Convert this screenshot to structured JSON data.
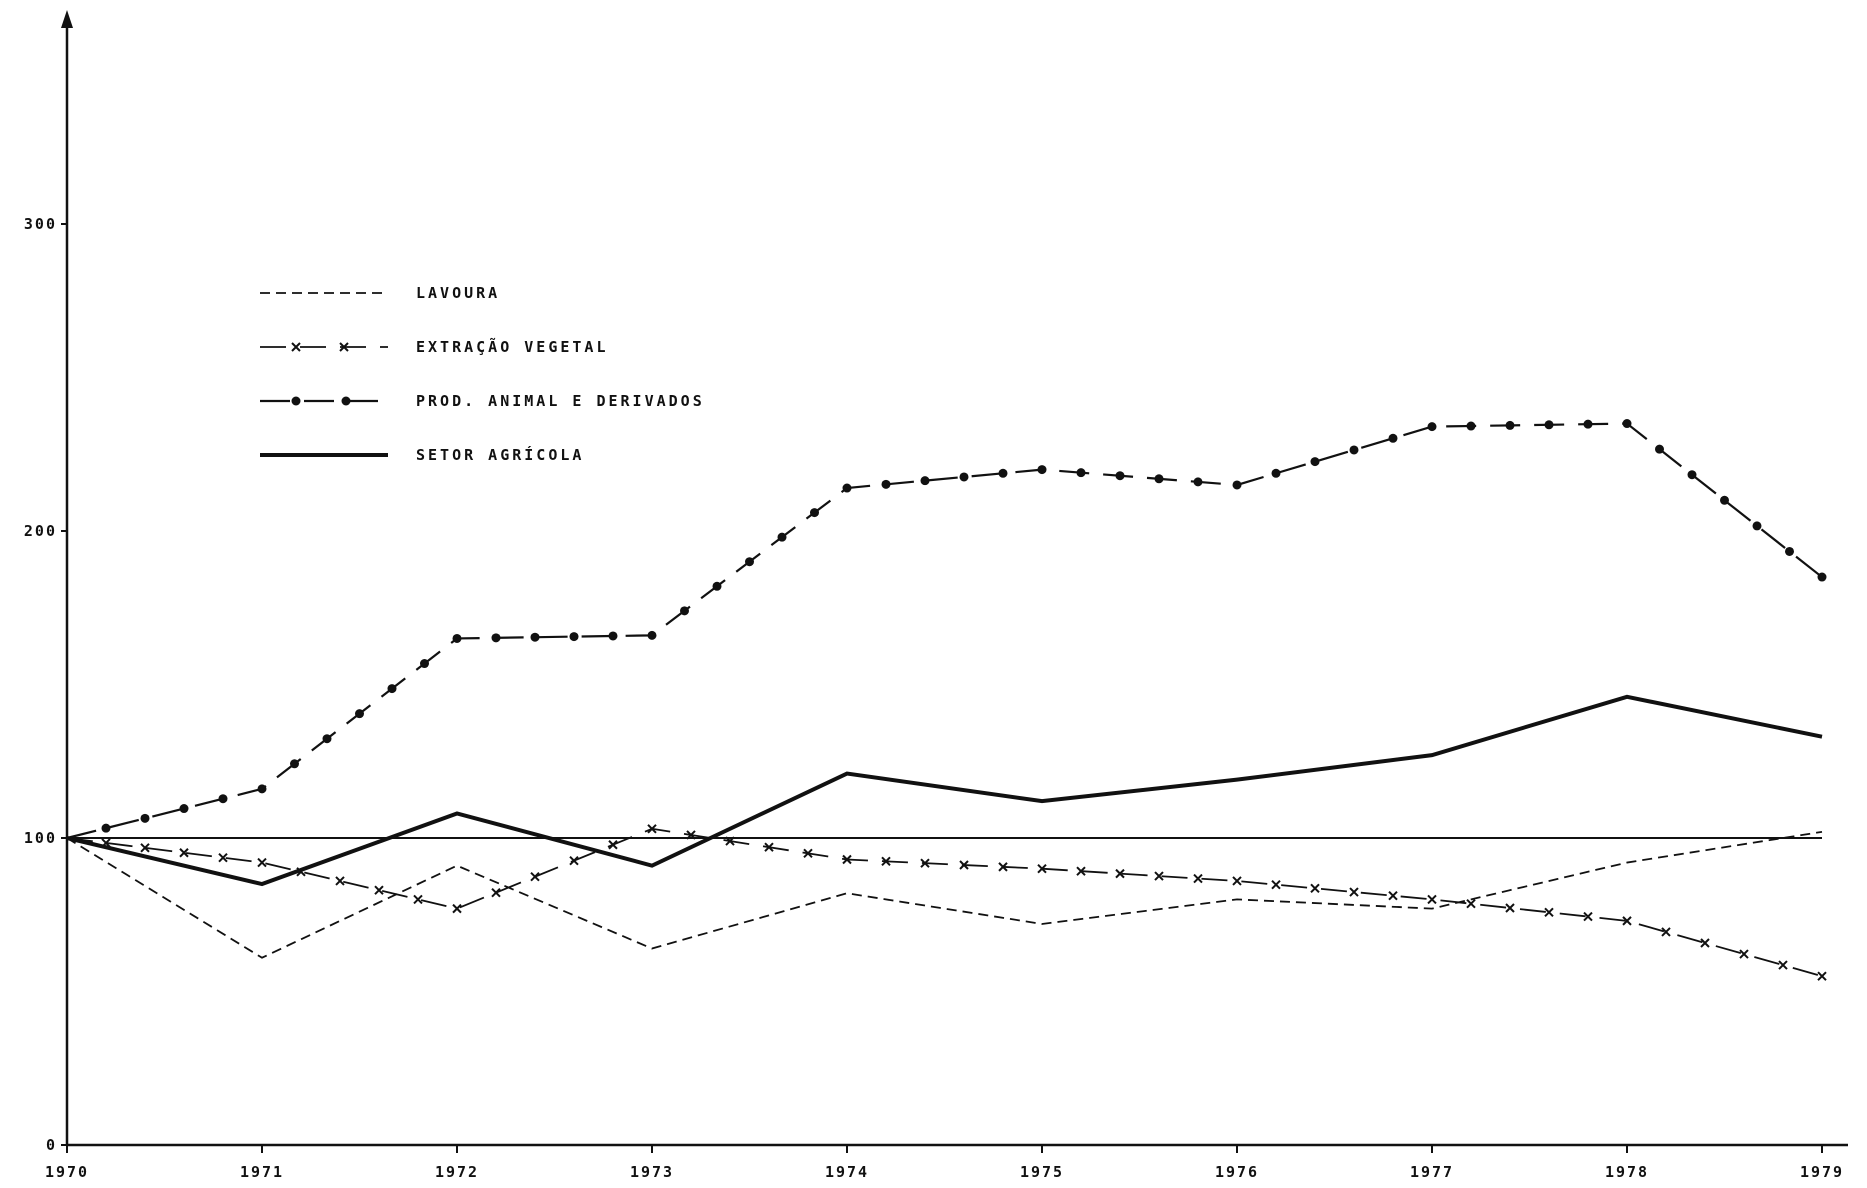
{
  "chart_data": {
    "type": "line",
    "x": [
      "1970",
      "1971",
      "1972",
      "1973",
      "1974",
      "1975",
      "1976",
      "1977",
      "1978",
      "1979"
    ],
    "yticks": [
      0,
      100,
      200,
      300
    ],
    "ylim": [
      0,
      360
    ],
    "reference_line": 100,
    "series": [
      {
        "name": "LAVOURA",
        "style": "dashed",
        "color": "#111111",
        "values": [
          100,
          61,
          91,
          64,
          82,
          72,
          80,
          77,
          92,
          102
        ]
      },
      {
        "name": "EXTRAÇÃO VEGETAL",
        "style": "dash-x",
        "color": "#111111",
        "values": [
          100,
          92,
          77,
          103,
          93,
          90,
          86,
          80,
          73,
          55
        ]
      },
      {
        "name": "PROD. ANIMAL E DERIVADOS",
        "style": "dash-dot",
        "color": "#111111",
        "values": [
          100,
          116,
          165,
          166,
          214,
          220,
          215,
          234,
          235,
          185
        ]
      },
      {
        "name": "SETOR AGRÍCOLA",
        "style": "solid-thick",
        "color": "#111111",
        "values": [
          100,
          85,
          108,
          91,
          121,
          112,
          119,
          127,
          146,
          133
        ]
      }
    ],
    "legend_position": "upper-left",
    "grid": false
  }
}
